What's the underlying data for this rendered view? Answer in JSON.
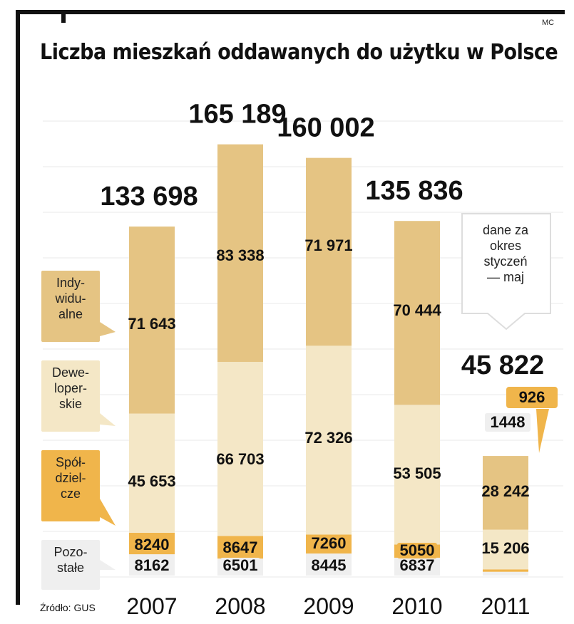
{
  "header": {
    "title": "Liczba mieszkań oddawanych do użytku w Polsce",
    "signature": "MC"
  },
  "source": "Źródło: GUS",
  "legend": {
    "indywidualne": [
      "Indy-",
      "widu-",
      "alne"
    ],
    "deweloperskie": [
      "Dewe-",
      "loper-",
      "skie"
    ],
    "spoldzielcze": [
      "Spół-",
      "dziel-",
      "cze"
    ],
    "pozostale": [
      "Pozo-",
      "stałe"
    ]
  },
  "note": [
    "dane za",
    "okres",
    "styczeń",
    "— maj"
  ],
  "colors": {
    "indywidualne": "#e5c483",
    "deweloperskie": "#f4e7c6",
    "spoldzielcze": "#f0b54b",
    "pozostale": "#efefef",
    "gridline": "#e8e8e8",
    "frame": "#111111"
  },
  "chart_data": {
    "type": "bar",
    "stacked": true,
    "title": "Liczba mieszkań oddawanych do użytku w Polsce",
    "categories": [
      "2007",
      "2008",
      "2009",
      "2010",
      "2011"
    ],
    "series": [
      {
        "name": "Pozostałe",
        "values": [
          8162,
          6501,
          8445,
          6837,
          1448
        ],
        "labels": [
          "8162",
          "6501",
          "8445",
          "6837",
          "1448"
        ]
      },
      {
        "name": "Spółdzielcze",
        "values": [
          8240,
          8647,
          7260,
          5050,
          926
        ],
        "labels": [
          "8240",
          "8647",
          "7260",
          "5050",
          "926"
        ]
      },
      {
        "name": "Deweloperskie",
        "values": [
          45653,
          66703,
          72326,
          53505,
          15206
        ],
        "labels": [
          "45 653",
          "66 703",
          "72 326",
          "53 505",
          "15 206"
        ]
      },
      {
        "name": "Indywidualne",
        "values": [
          71643,
          83338,
          71971,
          70444,
          28242
        ],
        "labels": [
          "71 643",
          "83 338",
          "71 971",
          "70 444",
          "28 242"
        ]
      }
    ],
    "totals": [
      133698,
      165189,
      160002,
      135836,
      45822
    ],
    "total_labels": [
      "133 698",
      "165 189",
      "160 002",
      "135 836",
      "45 822"
    ],
    "ylim": [
      0,
      170000
    ],
    "grid": true,
    "legend_position": "left"
  }
}
